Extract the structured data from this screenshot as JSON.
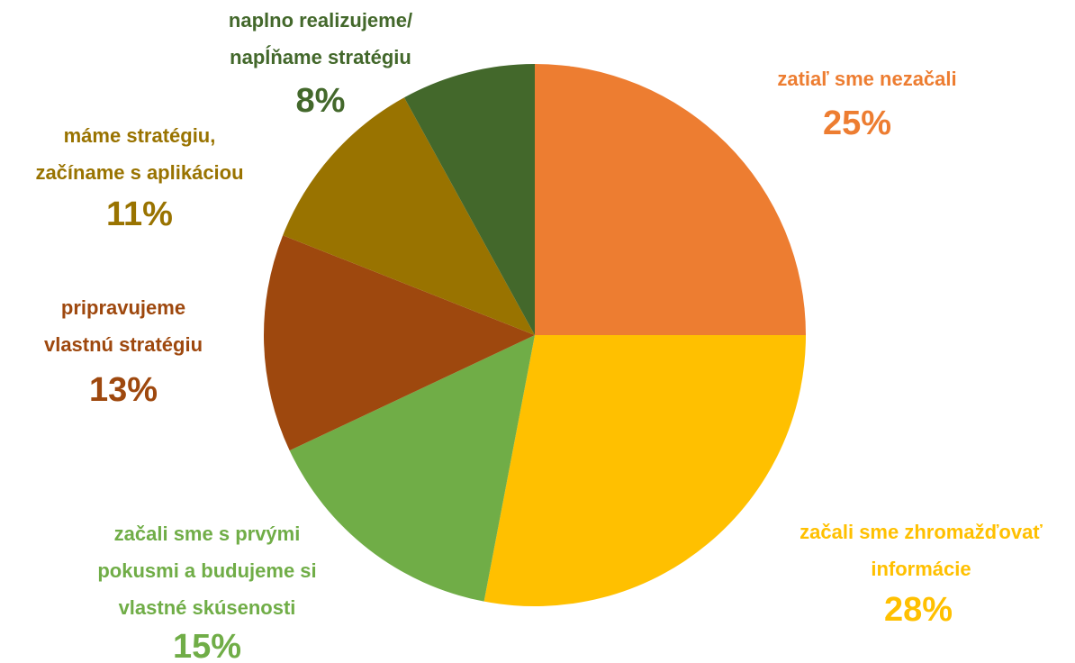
{
  "chart_data": {
    "type": "pie",
    "categories": [
      "zatiaľ sme nezačali",
      "začali sme zhromažďovať\ninformácie",
      "začali sme s prvými\npokusmi a budujeme si\nvlastné skúsenosti",
      "pripravujeme\nvlastnú stratégiu",
      "máme stratégiu,\nzačíname s aplikáciou",
      "naplno realizujeme/\nnapĺňame stratégiu"
    ],
    "values": [
      25,
      28,
      15,
      13,
      11,
      8
    ],
    "value_labels": [
      "25%",
      "28%",
      "15%",
      "13%",
      "11%",
      "8%"
    ],
    "colors": [
      "#ED7D31",
      "#FFC000",
      "#70AD47",
      "#9E480E",
      "#997300",
      "#43682B"
    ]
  }
}
